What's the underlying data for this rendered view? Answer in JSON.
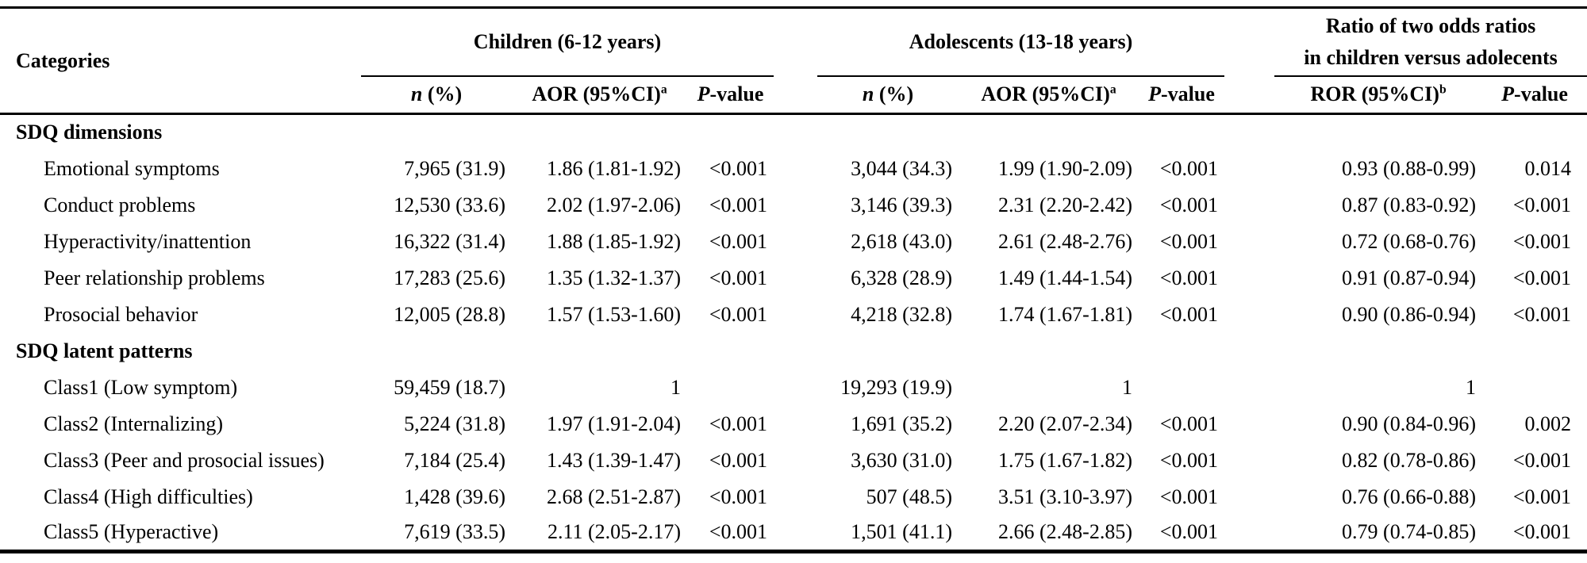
{
  "table": {
    "categories_header": "Categories",
    "group_children": "Children (6-12 years)",
    "group_adolescents": "Adolescents (13-18 years)",
    "group_ror_line1": "Ratio of two odds ratios",
    "group_ror_line2": "in children versus adolecents",
    "col_headers": {
      "children": [
        [
          {
            "i": "n"
          },
          {
            "t": " (%)"
          }
        ],
        [
          {
            "t": "AOR (95%CI)"
          },
          {
            "sup": "a"
          }
        ],
        [
          {
            "i": "P"
          },
          {
            "t": "-value"
          }
        ]
      ],
      "adolescents": [
        [
          {
            "i": "n"
          },
          {
            "t": " (%)"
          }
        ],
        [
          {
            "t": "AOR (95%CI)"
          },
          {
            "sup": "a"
          }
        ],
        [
          {
            "i": "P"
          },
          {
            "t": "-value"
          }
        ]
      ],
      "ror": [
        [
          {
            "t": "ROR (95%CI)"
          },
          {
            "sup": "b"
          }
        ],
        [
          {
            "i": "P"
          },
          {
            "t": "-value"
          }
        ]
      ]
    },
    "sections": [
      {
        "title": "SDQ dimensions",
        "rows": [
          {
            "label": "Emotional symptoms",
            "values": [
              "7,965 (31.9)",
              "1.86 (1.81-1.92)",
              "<0.001",
              "3,044 (34.3)",
              "1.99 (1.90-2.09)",
              "<0.001",
              "0.93 (0.88-0.99)",
              "0.014"
            ]
          },
          {
            "label": "Conduct problems",
            "values": [
              "12,530 (33.6)",
              "2.02 (1.97-2.06)",
              "<0.001",
              "3,146 (39.3)",
              "2.31 (2.20-2.42)",
              "<0.001",
              "0.87 (0.83-0.92)",
              "<0.001"
            ]
          },
          {
            "label": "Hyperactivity/inattention",
            "values": [
              "16,322 (31.4)",
              "1.88 (1.85-1.92)",
              "<0.001",
              "2,618 (43.0)",
              "2.61 (2.48-2.76)",
              "<0.001",
              "0.72 (0.68-0.76)",
              "<0.001"
            ]
          },
          {
            "label": "Peer relationship problems",
            "values": [
              "17,283 (25.6)",
              "1.35 (1.32-1.37)",
              "<0.001",
              "6,328 (28.9)",
              "1.49 (1.44-1.54)",
              "<0.001",
              "0.91 (0.87-0.94)",
              "<0.001"
            ]
          },
          {
            "label": "Prosocial behavior",
            "values": [
              "12,005 (28.8)",
              "1.57 (1.53-1.60)",
              "<0.001",
              "4,218 (32.8)",
              "1.74 (1.67-1.81)",
              "<0.001",
              "0.90 (0.86-0.94)",
              "<0.001"
            ]
          }
        ]
      },
      {
        "title": "SDQ latent patterns",
        "rows": [
          {
            "label": "Class1 (Low symptom)",
            "values": [
              "59,459 (18.7)",
              "1",
              "",
              "19,293 (19.9)",
              "1",
              "",
              "1",
              ""
            ]
          },
          {
            "label": "Class2 (Internalizing)",
            "values": [
              "5,224 (31.8)",
              "1.97 (1.91-2.04)",
              "<0.001",
              "1,691 (35.2)",
              "2.20 (2.07-2.34)",
              "<0.001",
              "0.90 (0.84-0.96)",
              "0.002"
            ]
          },
          {
            "label": "Class3 (Peer and prosocial issues)",
            "values": [
              "7,184 (25.4)",
              "1.43 (1.39-1.47)",
              "<0.001",
              "3,630 (31.0)",
              "1.75 (1.67-1.82)",
              "<0.001",
              "0.82 (0.78-0.86)",
              "<0.001"
            ]
          },
          {
            "label": "Class4 (High difficulties)",
            "values": [
              "1,428 (39.6)",
              "2.68 (2.51-2.87)",
              "<0.001",
              "507 (48.5)",
              "3.51 (3.10-3.97)",
              "<0.001",
              "0.76 (0.66-0.88)",
              "<0.001"
            ]
          },
          {
            "label": "Class5 (Hyperactive)",
            "values": [
              "7,619 (33.5)",
              "2.11 (2.05-2.17)",
              "<0.001",
              "1,501 (41.1)",
              "2.66 (2.48-2.85)",
              "<0.001",
              "0.79 (0.74-0.85)",
              "<0.001"
            ]
          }
        ]
      }
    ]
  }
}
